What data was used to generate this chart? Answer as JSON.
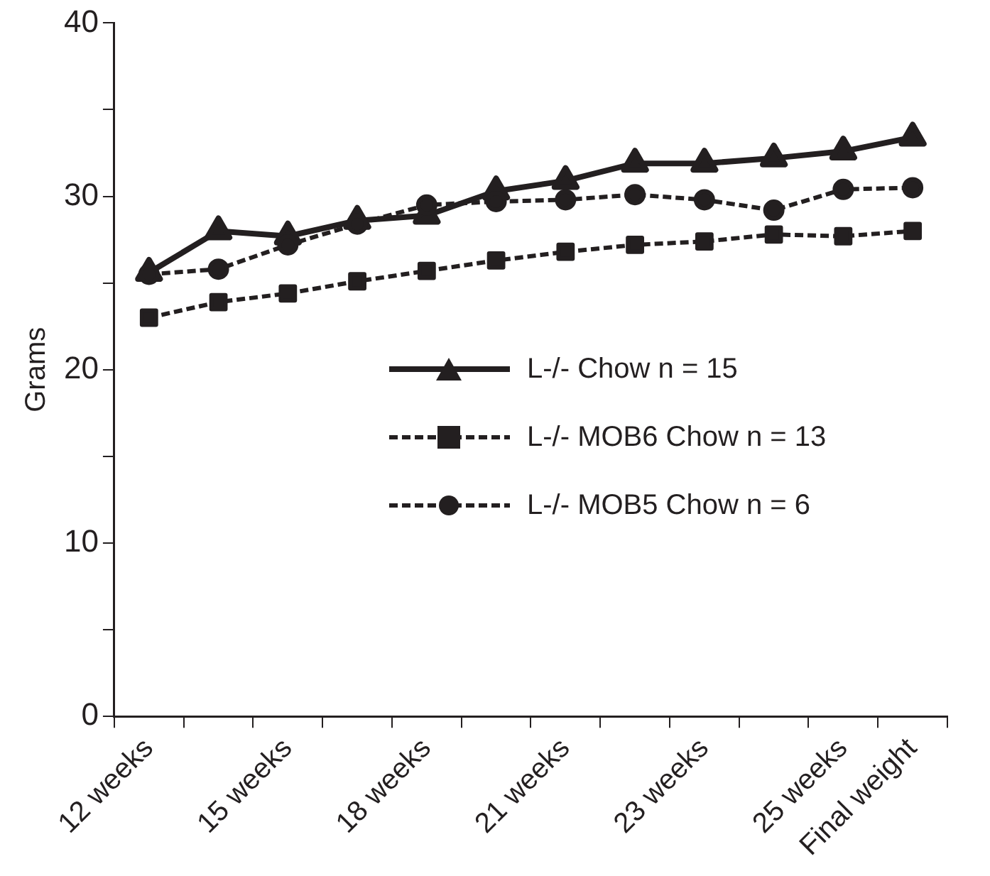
{
  "chart_data": {
    "type": "line",
    "ylabel": "Grams",
    "categories": [
      "12 weeks",
      null,
      "15 weeks",
      null,
      "18 weeks",
      null,
      "21 weeks",
      null,
      "23 weeks",
      null,
      "25 weeks",
      "Final weight"
    ],
    "series": [
      {
        "name": "L-/- Chow n = 15",
        "color": "#231f20",
        "marker": "triangle",
        "line_style": "solid",
        "values": [
          25.6,
          28.0,
          27.7,
          28.6,
          28.9,
          30.3,
          30.9,
          31.9,
          31.9,
          32.2,
          32.6,
          33.4
        ]
      },
      {
        "name": "L-/- MOB6 Chow n = 13",
        "color": "#231f20",
        "marker": "square",
        "line_style": "dashed",
        "values": [
          23.0,
          23.9,
          24.4,
          25.1,
          25.7,
          26.3,
          26.8,
          27.2,
          27.4,
          27.8,
          27.7,
          28.0
        ]
      },
      {
        "name": "L-/- MOB5 Chow n = 6",
        "color": "#231f20",
        "marker": "circle",
        "line_style": "dashed",
        "values": [
          25.5,
          25.8,
          27.2,
          28.4,
          29.5,
          29.7,
          29.8,
          30.1,
          29.8,
          29.2,
          30.4,
          30.5
        ]
      }
    ],
    "ylim": [
      0,
      40
    ],
    "yticks": [
      0,
      {
        "value": 5,
        "label": null
      },
      10,
      {
        "value": 15,
        "label": null
      },
      20,
      {
        "value": 25,
        "label": null
      },
      30,
      {
        "value": 35,
        "label": null
      },
      40
    ],
    "grid": false,
    "legend": "right"
  }
}
